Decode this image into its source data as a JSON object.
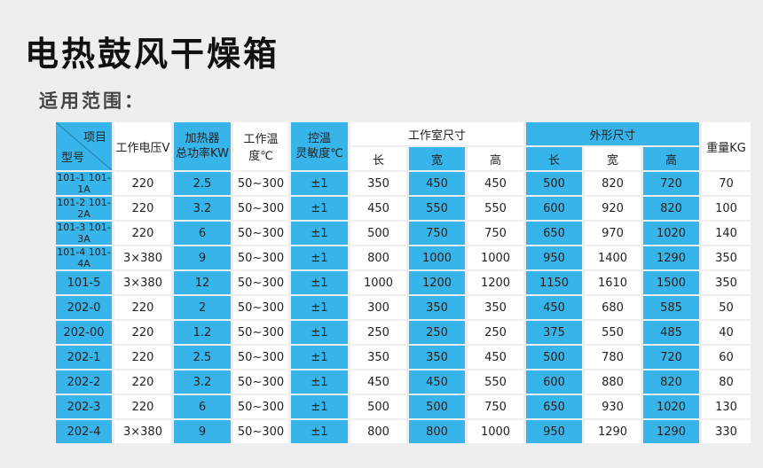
{
  "title": "电热鼓风干燥箱",
  "subtitle": "适用范围：",
  "headers": {
    "item": "项目",
    "model": "型号",
    "voltage": "工作电压V",
    "heater_line1": "加热器",
    "heater_line2": "总功率KW",
    "temp_range": "工作温度℃",
    "ctrl_line1": "控温",
    "ctrl_line2": "灵敏度℃",
    "chamber_size": "工作室尺寸",
    "outer_size": "外形尺寸",
    "weight": "重量KG",
    "length": "长",
    "width": "宽",
    "height": "高"
  },
  "rows": [
    [
      "101-1 101-1A",
      "220",
      "2.5",
      "50~300",
      "±1",
      "350",
      "450",
      "450",
      "500",
      "820",
      "720",
      "70"
    ],
    [
      "101-2 101-2A",
      "220",
      "3.2",
      "50~300",
      "±1",
      "450",
      "550",
      "550",
      "600",
      "920",
      "820",
      "100"
    ],
    [
      "101-3 101-3A",
      "220",
      "6",
      "50~300",
      "±1",
      "500",
      "750",
      "750",
      "650",
      "970",
      "1020",
      "140"
    ],
    [
      "101-4 101-4A",
      "3×380",
      "9",
      "50~300",
      "±1",
      "800",
      "1000",
      "1000",
      "950",
      "1400",
      "1290",
      "350"
    ],
    [
      "101-5",
      "3×380",
      "12",
      "50~300",
      "±1",
      "1000",
      "1200",
      "1200",
      "1150",
      "1610",
      "1500",
      "350"
    ],
    [
      "202-0",
      "220",
      "2",
      "50~300",
      "±1",
      "300",
      "350",
      "350",
      "450",
      "680",
      "585",
      "50"
    ],
    [
      "202-00",
      "220",
      "1.2",
      "50~300",
      "±1",
      "250",
      "250",
      "250",
      "375",
      "550",
      "485",
      "40"
    ],
    [
      "202-1",
      "220",
      "2.5",
      "50~300",
      "±1",
      "350",
      "350",
      "450",
      "500",
      "780",
      "720",
      "60"
    ],
    [
      "202-2",
      "220",
      "3.2",
      "50~300",
      "±1",
      "450",
      "450",
      "550",
      "600",
      "880",
      "820",
      "80"
    ],
    [
      "202-3",
      "220",
      "6",
      "50~300",
      "±1",
      "500",
      "500",
      "750",
      "650",
      "930",
      "1020",
      "130"
    ],
    [
      "202-4",
      "3×380",
      "9",
      "50~300",
      "±1",
      "800",
      "800",
      "1000",
      "950",
      "1290",
      "1290",
      "330"
    ]
  ],
  "colors": {
    "accent": "#37b4ea",
    "cell": "#ffffff",
    "background": "#eeeeee"
  }
}
